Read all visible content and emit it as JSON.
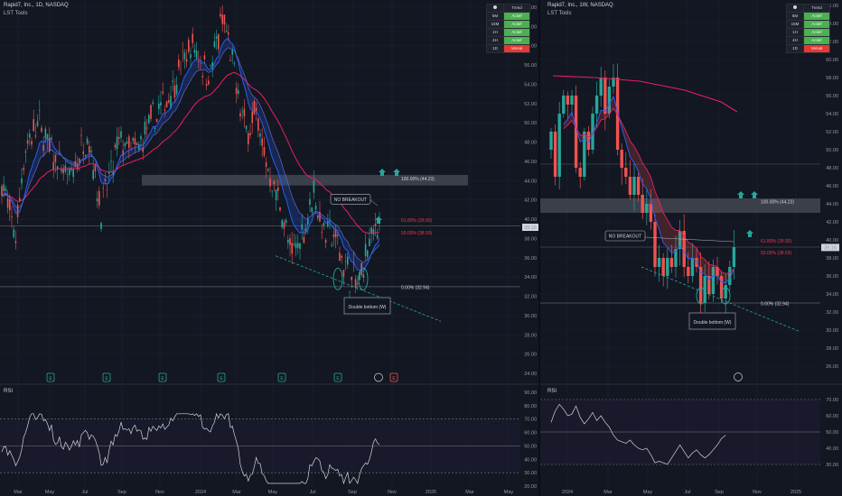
{
  "left": {
    "title": "Rapid7, Inc., 1D, NASDAQ",
    "subtitle": "LST Tools",
    "price_ticks": [
      "62.00",
      "60.00",
      "58.00",
      "56.00",
      "54.00",
      "52.00",
      "50.00",
      "48.00",
      "46.00",
      "44.00",
      "42.00",
      "40.00",
      "38.00",
      "36.00",
      "34.00",
      "32.00",
      "30.00",
      "28.00",
      "26.00",
      "24.00"
    ],
    "current_price": "39.16",
    "fib_100": "100.00% (44.23)",
    "fib_618": "61.80% (39.92)",
    "fib_50": "50.00% (38.59)",
    "fib_0": "0.00% (32.94)",
    "no_breakout": "NO BREAKOUT",
    "double_bottom": "Double bottom (W)",
    "time_ticks": [
      "Mar",
      "May",
      "Jul",
      "Sep",
      "Nov",
      "2024",
      "Mar",
      "May",
      "Jul",
      "Sep",
      "Nov",
      "2025",
      "Mar",
      "May"
    ],
    "rsi_label": "RSI",
    "rsi_ticks": [
      "90.00",
      "80.00",
      "70.00",
      "60.00",
      "50.00",
      "40.00",
      "30.00",
      "20.00"
    ],
    "earnings_markers": [
      "E",
      "E",
      "E",
      "E",
      "E",
      "E"
    ],
    "earnings_red": "E"
  },
  "right": {
    "title": "Rapid7, Inc., 1W, NASDAQ",
    "subtitle": "LST Tools",
    "price_ticks": [
      "66.00",
      "64.00",
      "62.00",
      "60.00",
      "58.00",
      "56.00",
      "54.00",
      "52.00",
      "50.00",
      "48.00",
      "46.00",
      "44.00",
      "42.00",
      "40.00",
      "38.00",
      "36.00",
      "34.00",
      "32.00",
      "30.00",
      "28.00",
      "26.00"
    ],
    "current_price": "39.16",
    "fib_100": "100.00% (44.23)",
    "fib_618": "61.80% (39.92)",
    "fib_50": "50.00% (38.59)",
    "fib_0": "0.00% (32.94)",
    "no_breakout": "NO BREAKOUT",
    "double_bottom": "Double bottom (W)",
    "time_ticks": [
      "2024",
      "Mar",
      "May",
      "Jul",
      "Sep",
      "Nov",
      "2025"
    ],
    "rsi_label": "RSI",
    "rsi_ticks": [
      "70.00",
      "60.00",
      "50.00",
      "40.00",
      "30.00"
    ]
  },
  "trend_table": {
    "header": [
      "",
      "Trend"
    ],
    "rows": [
      {
        "tf": "5M",
        "status": "Actief",
        "state": "active"
      },
      {
        "tf": "15M",
        "status": "Actief",
        "state": "active"
      },
      {
        "tf": "1H",
        "status": "Actief",
        "state": "active"
      },
      {
        "tf": "4H",
        "status": "Actief",
        "state": "active"
      },
      {
        "tf": "1D",
        "status": "Verval",
        "state": "inactive"
      }
    ]
  },
  "colors": {
    "background": "#131722",
    "up": "#26a69a",
    "down": "#ef5350",
    "ema_fast": "#2962ff",
    "ema_slow": "#e91e63",
    "fib_red": "#f23645",
    "rsi": "#d1d4dc",
    "arrow": "#26a69a"
  }
}
